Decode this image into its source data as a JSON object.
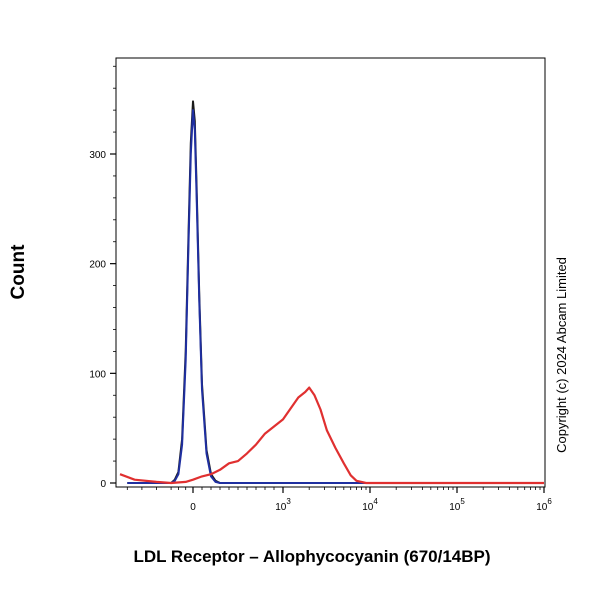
{
  "chart_data": {
    "type": "line",
    "title": "",
    "xlabel": "LDL Receptor – Allophycocyanin (670/14BP)",
    "ylabel": "Count",
    "x_scale": "biexponential",
    "xlim": [
      -1000,
      1000000
    ],
    "ylim": [
      0,
      390
    ],
    "x_ticks": [
      {
        "value": 0,
        "base": "0",
        "exp": ""
      },
      {
        "value": 1000,
        "base": "10",
        "exp": "3"
      },
      {
        "value": 10000,
        "base": "10",
        "exp": "4"
      },
      {
        "value": 100000,
        "base": "10",
        "exp": "5"
      },
      {
        "value": 1000000,
        "base": "10",
        "exp": "6"
      }
    ],
    "y_ticks": [
      0,
      100,
      200,
      300
    ],
    "grid": false,
    "legend": "none",
    "copyright": "Copyright (c) 2024 Abcam Limited",
    "series": [
      {
        "color": "#1a1a1a",
        "x": [
          -900,
          -500,
          -300,
          -250,
          -200,
          -150,
          -100,
          -60,
          -30,
          0,
          20,
          40,
          70,
          100,
          150,
          200,
          250,
          300,
          500,
          1000,
          1000000
        ],
        "y": [
          0,
          0,
          0,
          3,
          10,
          40,
          120,
          230,
          310,
          348,
          330,
          270,
          170,
          90,
          30,
          8,
          2,
          0,
          0,
          0,
          0
        ]
      },
      {
        "color": "#1f2fa0",
        "x": [
          -900,
          -500,
          -300,
          -250,
          -200,
          -150,
          -100,
          -60,
          -30,
          0,
          20,
          40,
          70,
          100,
          150,
          200,
          250,
          300,
          500,
          1000,
          1000000
        ],
        "y": [
          0,
          0,
          0,
          2,
          8,
          35,
          112,
          222,
          300,
          340,
          322,
          262,
          165,
          85,
          27,
          6,
          1,
          0,
          0,
          0,
          0
        ]
      },
      {
        "color": "#e03030",
        "x": [
          -1000,
          -800,
          -500,
          -300,
          -100,
          0,
          100,
          200,
          300,
          400,
          500,
          600,
          700,
          800,
          1000,
          1200,
          1500,
          1800,
          2000,
          2300,
          2700,
          3200,
          4000,
          5000,
          6000,
          7000,
          8000,
          9000,
          10000,
          1000000
        ],
        "y": [
          8,
          3,
          1,
          0,
          1,
          3,
          6,
          8,
          12,
          18,
          20,
          27,
          35,
          45,
          58,
          67,
          78,
          83,
          87,
          80,
          67,
          48,
          32,
          18,
          7,
          2,
          1,
          0,
          0,
          0
        ]
      }
    ]
  }
}
